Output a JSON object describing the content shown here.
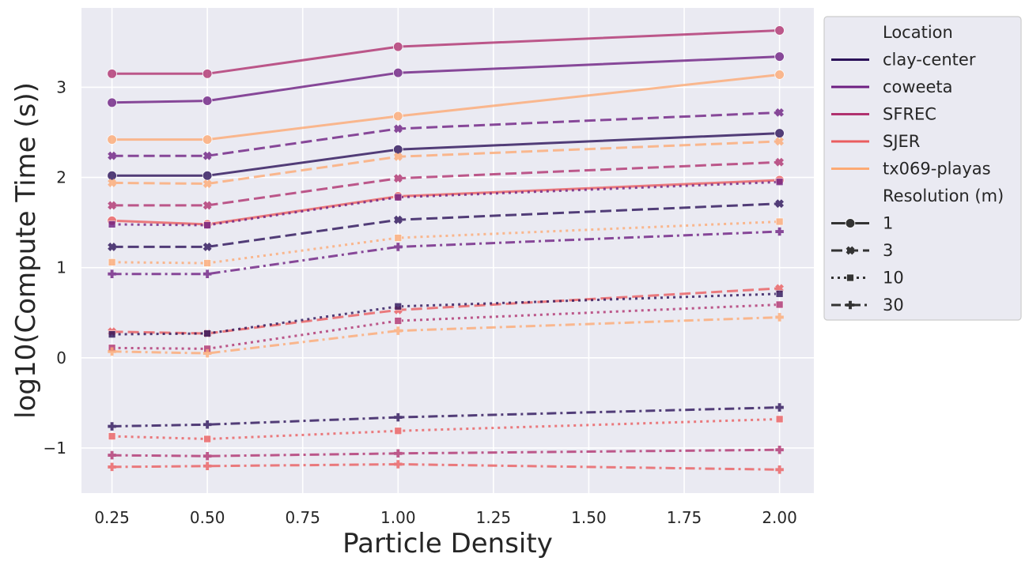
{
  "chart_data": {
    "type": "line",
    "xlabel": "Particle Density",
    "ylabel": "log10(Compute Time (s))",
    "xlim": [
      0.17,
      2.09
    ],
    "ylim": [
      -1.5,
      3.88
    ],
    "xticks": [
      0.25,
      0.5,
      0.75,
      1.0,
      1.25,
      1.5,
      1.75,
      2.0
    ],
    "xtick_labels": [
      "0.25",
      "0.50",
      "0.75",
      "1.00",
      "1.25",
      "1.50",
      "1.75",
      "2.00"
    ],
    "yticks": [
      -1,
      0,
      1,
      2,
      3
    ],
    "ytick_labels": [
      "−1",
      "0",
      "1",
      "2",
      "3"
    ],
    "grid": true,
    "legend_position": "outside-top-right",
    "x": [
      0.25,
      0.5,
      1.0,
      2.0
    ],
    "hue_title": "Location",
    "style_title": "Resolution (m)",
    "locations": [
      {
        "name": "clay-center",
        "color": "#2b1159"
      },
      {
        "name": "coweeta",
        "color": "#6e1f82"
      },
      {
        "name": "SFREC",
        "color": "#b0326f"
      },
      {
        "name": "SJER",
        "color": "#ea5d5f"
      },
      {
        "name": "tx069-playas",
        "color": "#fdaa74"
      }
    ],
    "resolutions": [
      {
        "name": "1",
        "dash": "",
        "marker": "circle"
      },
      {
        "name": "3",
        "dash": "14,6",
        "marker": "x"
      },
      {
        "name": "10",
        "dash": "3,5",
        "marker": "square"
      },
      {
        "name": "30",
        "dash": "12,5,3,5",
        "marker": "plus"
      }
    ],
    "series": [
      {
        "location": "SFREC",
        "resolution": "1",
        "values": [
          3.15,
          3.15,
          3.45,
          3.63
        ]
      },
      {
        "location": "coweeta",
        "resolution": "1",
        "values": [
          2.83,
          2.85,
          3.16,
          3.34
        ]
      },
      {
        "location": "tx069-playas",
        "resolution": "1",
        "values": [
          2.42,
          2.42,
          2.68,
          3.14
        ]
      },
      {
        "location": "clay-center",
        "resolution": "1",
        "values": [
          2.02,
          2.02,
          2.31,
          2.49
        ]
      },
      {
        "location": "SJER",
        "resolution": "1",
        "values": [
          1.52,
          1.48,
          1.79,
          1.97
        ]
      },
      {
        "location": "coweeta",
        "resolution": "3",
        "values": [
          2.24,
          2.24,
          2.54,
          2.72
        ]
      },
      {
        "location": "tx069-playas",
        "resolution": "3",
        "values": [
          1.94,
          1.93,
          2.23,
          2.4
        ]
      },
      {
        "location": "SFREC",
        "resolution": "3",
        "values": [
          1.69,
          1.69,
          1.99,
          2.17
        ]
      },
      {
        "location": "clay-center",
        "resolution": "3",
        "values": [
          1.23,
          1.23,
          1.53,
          1.71
        ]
      },
      {
        "location": "SJER",
        "resolution": "3",
        "values": [
          0.29,
          0.27,
          0.53,
          0.77
        ]
      },
      {
        "location": "coweeta",
        "resolution": "10",
        "values": [
          1.48,
          1.47,
          1.78,
          1.95
        ]
      },
      {
        "location": "tx069-playas",
        "resolution": "10",
        "values": [
          1.06,
          1.05,
          1.33,
          1.51
        ]
      },
      {
        "location": "clay-center",
        "resolution": "10",
        "values": [
          0.26,
          0.27,
          0.57,
          0.71
        ]
      },
      {
        "location": "SFREC",
        "resolution": "10",
        "values": [
          0.11,
          0.1,
          0.41,
          0.59
        ]
      },
      {
        "location": "SJER",
        "resolution": "10",
        "values": [
          -0.87,
          -0.9,
          -0.81,
          -0.68
        ]
      },
      {
        "location": "coweeta",
        "resolution": "30",
        "values": [
          0.93,
          0.93,
          1.23,
          1.4
        ]
      },
      {
        "location": "tx069-playas",
        "resolution": "30",
        "values": [
          0.07,
          0.05,
          0.3,
          0.45
        ]
      },
      {
        "location": "clay-center",
        "resolution": "30",
        "values": [
          -0.76,
          -0.74,
          -0.66,
          -0.55
        ]
      },
      {
        "location": "SFREC",
        "resolution": "30",
        "values": [
          -1.08,
          -1.09,
          -1.06,
          -1.02
        ]
      },
      {
        "location": "SJER",
        "resolution": "30",
        "values": [
          -1.21,
          -1.2,
          -1.18,
          -1.24
        ]
      }
    ]
  }
}
